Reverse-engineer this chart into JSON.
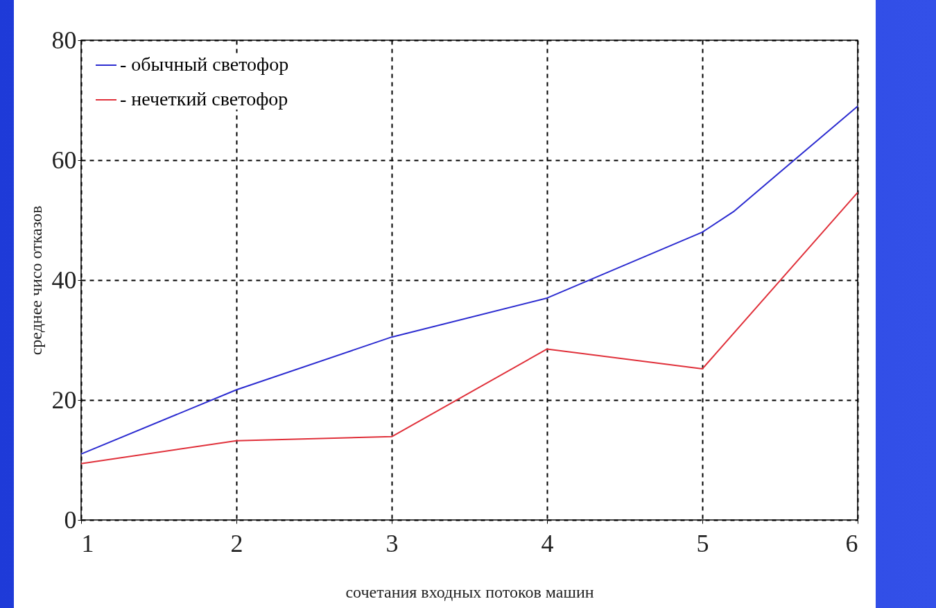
{
  "chart_data": {
    "type": "line",
    "xlabel": "сочетания входных потоков машин",
    "ylabel": "среднее чисо отказов",
    "xlim": [
      1,
      6
    ],
    "xticks": [
      1,
      2,
      3,
      4,
      5,
      6
    ],
    "ylim": [
      0,
      80
    ],
    "yticks": [
      0,
      20,
      40,
      60,
      80
    ],
    "grid": true,
    "legend": "top left",
    "line_style": "solid",
    "series": [
      {
        "name": "- обычный светофор",
        "color": "#2b2bd0",
        "x": [
          1,
          2,
          3,
          4,
          5,
          5.2,
          6
        ],
        "values": [
          11,
          21.7,
          30.5,
          37,
          48,
          51.4,
          69
        ]
      },
      {
        "name": "- нечеткий светофор",
        "color": "#e0303a",
        "x": [
          1,
          2,
          3,
          4,
          5,
          6
        ],
        "values": [
          9.4,
          13.2,
          13.9,
          28.5,
          25.2,
          54.6
        ]
      }
    ]
  }
}
